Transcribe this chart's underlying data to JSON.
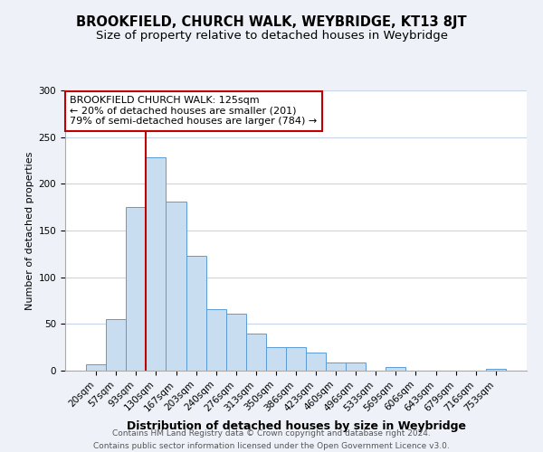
{
  "title": "BROOKFIELD, CHURCH WALK, WEYBRIDGE, KT13 8JT",
  "subtitle": "Size of property relative to detached houses in Weybridge",
  "xlabel": "Distribution of detached houses by size in Weybridge",
  "ylabel": "Number of detached properties",
  "bar_labels": [
    "20sqm",
    "57sqm",
    "93sqm",
    "130sqm",
    "167sqm",
    "203sqm",
    "240sqm",
    "276sqm",
    "313sqm",
    "350sqm",
    "386sqm",
    "423sqm",
    "460sqm",
    "496sqm",
    "533sqm",
    "569sqm",
    "606sqm",
    "643sqm",
    "679sqm",
    "716sqm",
    "753sqm"
  ],
  "bar_heights": [
    7,
    55,
    175,
    228,
    181,
    123,
    66,
    61,
    40,
    25,
    25,
    19,
    9,
    9,
    0,
    4,
    0,
    0,
    0,
    0,
    2
  ],
  "bar_color": "#c9ddf0",
  "bar_edge_color": "#5b9bd5",
  "annotation_line1": "BROOKFIELD CHURCH WALK: 125sqm",
  "annotation_line2": "← 20% of detached houses are smaller (201)",
  "annotation_line3": "79% of semi-detached houses are larger (784) →",
  "annotation_box_edge_color": "#c00000",
  "vline_color": "#c00000",
  "ylim": [
    0,
    300
  ],
  "yticks": [
    0,
    50,
    100,
    150,
    200,
    250,
    300
  ],
  "footer_line1": "Contains HM Land Registry data © Crown copyright and database right 2024.",
  "footer_line2": "Contains public sector information licensed under the Open Government Licence v3.0.",
  "background_color": "#eef2f8",
  "plot_background_color": "#ffffff",
  "grid_color": "#c8d4e8",
  "title_fontsize": 10.5,
  "subtitle_fontsize": 9.5,
  "xlabel_fontsize": 9,
  "ylabel_fontsize": 8,
  "tick_fontsize": 7.5,
  "annotation_fontsize": 8,
  "footer_fontsize": 6.5
}
